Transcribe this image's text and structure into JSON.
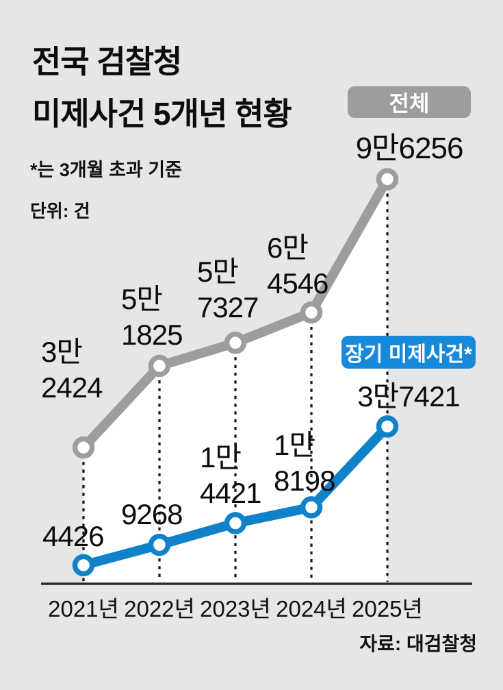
{
  "header": {
    "title_lines": [
      "전국 검찰청",
      "미제사건 5개년 현황"
    ],
    "note": "*는 3개월 초과 기준",
    "unit": "단위: 건"
  },
  "source": "자료: 대검찰청",
  "colors": {
    "background": "#e6e6e8",
    "total_series": "#9d9d9d",
    "longterm_series": "#0f82ca",
    "longterm_badge": "#1789d9",
    "area_fill": "#ffffff",
    "axis": "#2a2a2a",
    "guide_dash": "#1a1a1a",
    "text": "#0c0c0c"
  },
  "chart_data": {
    "type": "line",
    "title": "전국 검찰청 미제사건 5개년 현황",
    "note": "*는 3개월 초과 기준",
    "unit": "건",
    "source": "자료: 대검찰청",
    "categories": [
      "2021년",
      "2022년",
      "2023년",
      "2024년",
      "2025년"
    ],
    "x_years": [
      2021,
      2022,
      2023,
      2024,
      2025
    ],
    "ylim": [
      0,
      100000
    ],
    "grid": "dashed-vertical-guides",
    "legend_position": "inline-badges",
    "series": [
      {
        "name": "전체",
        "color": "#9d9d9d",
        "values": [
          32424,
          51825,
          57327,
          64546,
          96256
        ],
        "point_labels": [
          [
            "3만",
            "2424"
          ],
          [
            "5만",
            "1825"
          ],
          [
            "5만",
            "7327"
          ],
          [
            "6만",
            "4546"
          ],
          [
            "9만6256"
          ]
        ]
      },
      {
        "name": "장기 미제사건*",
        "color": "#0f82ca",
        "values": [
          4426,
          9268,
          14421,
          18198,
          37421
        ],
        "point_labels": [
          [
            "4426"
          ],
          [
            "9268"
          ],
          [
            "1만",
            "4421"
          ],
          [
            "1만",
            "8198"
          ],
          [
            "3만7421"
          ]
        ]
      }
    ]
  }
}
